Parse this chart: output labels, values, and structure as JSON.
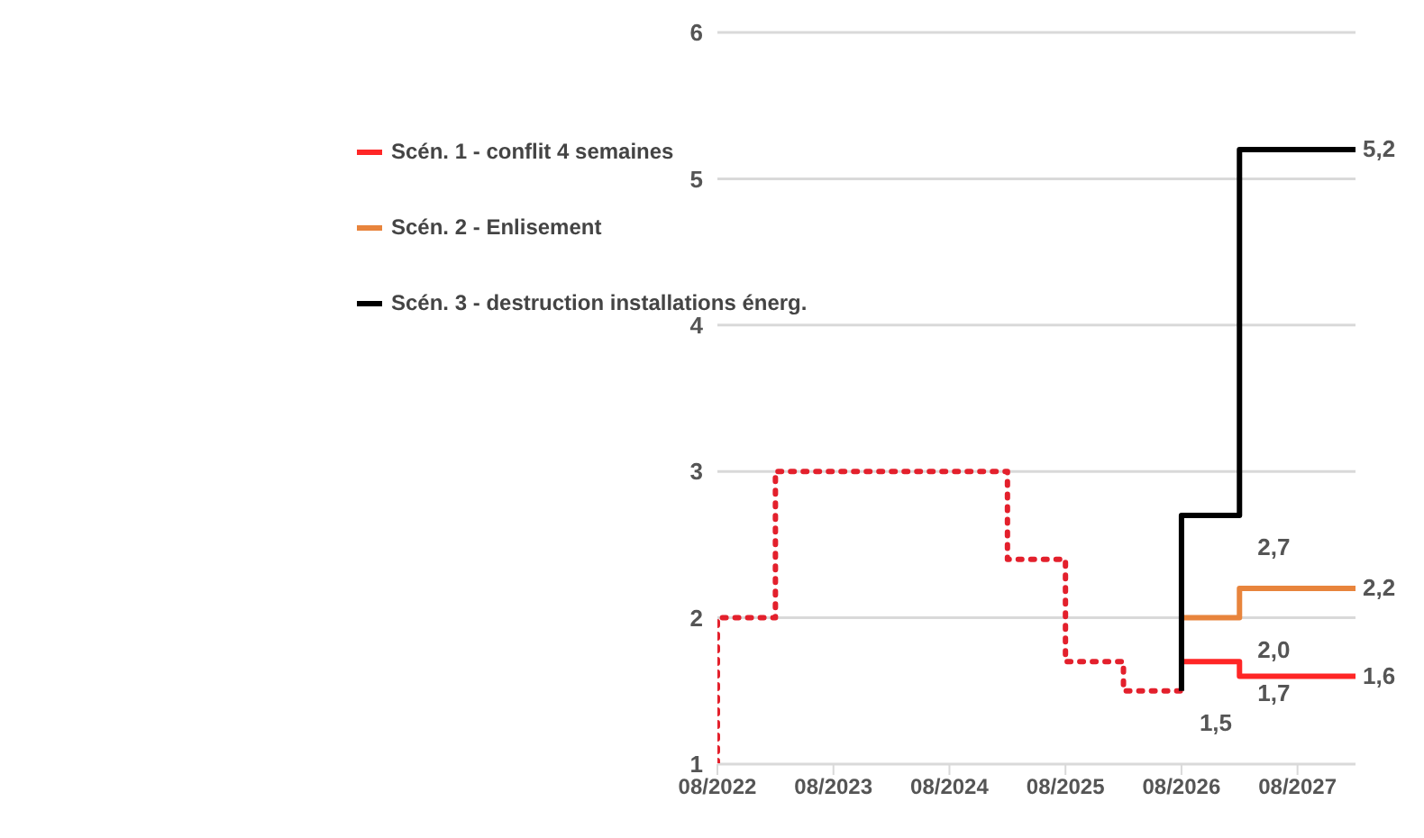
{
  "chart_data": {
    "type": "step",
    "xlim": [
      "2022-08",
      "2028-02"
    ],
    "xticks": [
      {
        "value": "2022-08",
        "label": "08/2022"
      },
      {
        "value": "2023-08",
        "label": "08/2023"
      },
      {
        "value": "2024-08",
        "label": "08/2024"
      },
      {
        "value": "2025-08",
        "label": "08/2025"
      },
      {
        "value": "2026-08",
        "label": "08/2026"
      },
      {
        "value": "2027-08",
        "label": "08/2027"
      }
    ],
    "ylim": [
      1,
      6
    ],
    "yticks": [
      1,
      2,
      3,
      4,
      5,
      6
    ],
    "grid": "y",
    "legend": "top left",
    "series": [
      {
        "color": "#e3202c",
        "line_style": "dotted",
        "x": [
          "2022-08",
          "2022-08",
          "2023-02",
          "2025-02",
          "2025-08",
          "2026-02",
          "2026-08"
        ],
        "values": [
          1,
          2,
          3,
          2.4,
          1.7,
          1.5,
          1.5
        ]
      },
      {
        "name": "Scén. 1 - conflit 4 semaines",
        "color": "#ff2626",
        "line_style": "solid",
        "x": [
          "2026-08",
          "2027-02",
          "2027-02",
          "2028-02"
        ],
        "values": [
          1.7,
          1.7,
          1.6,
          1.6
        ],
        "value_labels": [
          null,
          "1,7",
          null,
          "1,6"
        ]
      },
      {
        "name": "Scén. 2 - Enlisement",
        "color": "#e8843c",
        "line_style": "solid",
        "x": [
          "2026-08",
          "2027-02",
          "2027-02",
          "2028-02"
        ],
        "values": [
          2.0,
          2.0,
          2.2,
          2.2
        ],
        "value_labels": [
          null,
          "2,0",
          null,
          "2,2"
        ]
      },
      {
        "name": "Scén. 3 - destruction installations énerg.",
        "color": "#000000",
        "line_style": "solid",
        "x": [
          "2026-08",
          "2026-08",
          "2027-02",
          "2027-02",
          "2028-02"
        ],
        "values": [
          1.5,
          2.7,
          2.7,
          5.2,
          5.2
        ],
        "value_labels": [
          "1,5",
          null,
          "2,7",
          null,
          "5,2"
        ]
      }
    ]
  }
}
